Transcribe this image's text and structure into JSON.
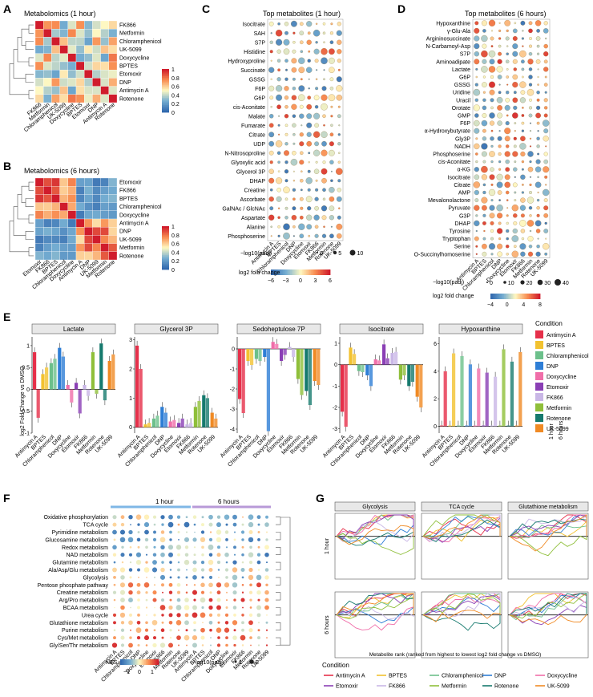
{
  "panels": {
    "A": {
      "letter": "A",
      "title": "Metabolomics (1 hour)",
      "rows": [
        "FK866",
        "Metformin",
        "Chloramphenicol",
        "UK-5099",
        "Doxycycline",
        "BPTES",
        "Etomoxir",
        "DNP",
        "Antimycin A",
        "Rotenone"
      ],
      "cols": [
        "FK866",
        "Metformin",
        "Chloramphenicol",
        "UK-5099",
        "Doxycycline",
        "BPTES",
        "Etomoxir",
        "DNP",
        "Antimycin A",
        "Rotenone"
      ],
      "scale": [
        "1",
        "0.8",
        "0.6",
        "0.4",
        "0.2",
        "0"
      ]
    },
    "B": {
      "letter": "B",
      "title": "Metabolomics (6 hours)",
      "rows": [
        "Etomoxir",
        "FK866",
        "BPTES",
        "Chloramphenicol",
        "Doxycycline",
        "Antimycin A",
        "DNP",
        "UK-5099",
        "Metformin",
        "Rotenone"
      ],
      "cols": [
        "Etomoxir",
        "FK866",
        "BPTES",
        "Chloramphenicol",
        "Doxycycline",
        "Antimycin A",
        "DNP",
        "UK-5099",
        "Metformin",
        "Rotenone"
      ],
      "scale": [
        "1",
        "0.8",
        "0.6",
        "0.4",
        "0.2",
        "0"
      ]
    },
    "C": {
      "letter": "C",
      "title": "Top metabolites (1 hour)",
      "rows": [
        "Isocitrate",
        "SAH",
        "S7P",
        "Histidine",
        "Hydroxyproline",
        "Succinate",
        "GSSG",
        "F6P",
        "G6P",
        "cis-Aconitate",
        "Malate",
        "Fumarate",
        "Citrate",
        "UDP",
        "N-Nitrosoproline",
        "Glyoxylic acid",
        "Glycerol 3P",
        "DHAP",
        "Creatine",
        "Ascorbate",
        "GalNAc / GlcNAc",
        "Aspartate",
        "Alanine",
        "Phosphoserine"
      ],
      "cols": [
        "Antimycin A",
        "BPTES",
        "Chloramphenicol",
        "DNP",
        "Doxycycline",
        "Etomoxir",
        "FK866",
        "Metformin",
        "Rotenone",
        "UK-5099"
      ],
      "size_title": "−log10(padj)",
      "size_ticks": [
        "0",
        "5",
        "10"
      ],
      "color_title": "log2 fold change",
      "color_ticks": [
        "−6",
        "−3",
        "0",
        "3",
        "6"
      ]
    },
    "D": {
      "letter": "D",
      "title": "Top metabolites (6 hours)",
      "rows": [
        "Hypoxanthine",
        "γ-Glu-Ala",
        "Argininosuccinate",
        "N-Carbamoyl-Asp",
        "S7P",
        "Aminoadipate",
        "Lactate",
        "G6P",
        "GSSG",
        "Uridine",
        "Uracil",
        "Orotate",
        "GMP",
        "F6P",
        "α-Hydroxybutyrate",
        "Gly3P",
        "NADH",
        "Phosphoserine",
        "cis-Aconitate",
        "α-KG",
        "Isocitrate",
        "Citrate",
        "AMP",
        "Mevalonolactone",
        "Pyruvate",
        "G3P",
        "DHAP",
        "Tyrosine",
        "Tryptophan",
        "Serine",
        "O-Succinylhomoserine"
      ],
      "cols": [
        "Antimycin A",
        "BPTES",
        "Chloramphenicol",
        "DNP",
        "Doxycycline",
        "Etomoxir",
        "FK866",
        "Metformin",
        "Rotenone",
        "UK-5099"
      ],
      "size_title": "−log10(padj)",
      "size_ticks": [
        "0",
        "10",
        "20",
        "30",
        "40"
      ],
      "color_title": "log2 fold change",
      "color_ticks": [
        "−4",
        "0",
        "4",
        "8"
      ]
    },
    "E": {
      "letter": "E",
      "ylabel": "log2 Fold Change vs DMSO",
      "legend_title": "Condition",
      "timepoints": [
        "1 hour",
        "6 hours"
      ]
    },
    "F": {
      "letter": "F",
      "header_1h": "1 hour",
      "header_6h": "6 hours",
      "rows": [
        "Oxidative phosphorylation",
        "TCA cycle",
        "Pyrimidine metabolism",
        "Glucosamine metabolism",
        "Redox metabolism",
        "NAD metabolism",
        "Glutamine metabolism",
        "Ala/Asp/Glu metabolism",
        "Glycolysis",
        "Pentose phosphate pathway",
        "Creatine metabolism",
        "Arg/Pro metabolism",
        "BCAA metabolism",
        "Urea cycle",
        "Glutathione metabolism",
        "Purine metabolism",
        "Cys/Met metabolism",
        "Gly/Ser/Thr metabolism"
      ],
      "cols": [
        "Antimycin A",
        "BPTES",
        "Chloramphenicol",
        "DNP",
        "Doxycycline",
        "Etomoxir",
        "FK866",
        "Metformin",
        "Rotenone",
        "UK-5099",
        "Antimycin A",
        "BPTES",
        "Chloramphenicol",
        "DNP",
        "Doxycycline",
        "Etomoxir",
        "FK866",
        "Metformin",
        "Rotenone",
        "UK-5099"
      ],
      "nes_title": "NES",
      "nes_ticks": [
        "−1",
        "0",
        "1"
      ],
      "size_title": "−log10(padj)",
      "size_ticks": [
        "1",
        "2"
      ]
    },
    "G": {
      "letter": "G",
      "rows": [
        "1 hour",
        "6 hours"
      ],
      "xlabel": "Metabolite rank (ranked from highest to lowest log2 fold change vs DMSO)",
      "legend_title": "Condition"
    }
  },
  "conditions": [
    {
      "name": "Antimycin A",
      "color": "#e6304a"
    },
    {
      "name": "BPTES",
      "color": "#f2c230"
    },
    {
      "name": "Chloramphenicol",
      "color": "#6cc08b"
    },
    {
      "name": "DNP",
      "color": "#2e7ed6"
    },
    {
      "name": "Doxycycline",
      "color": "#f06ea9"
    },
    {
      "name": "Etomoxir",
      "color": "#8a3fb5"
    },
    {
      "name": "FK866",
      "color": "#c9b7e6"
    },
    {
      "name": "Metformin",
      "color": "#8fbf3a"
    },
    {
      "name": "Rotenone",
      "color": "#167a6e"
    },
    {
      "name": "UK-5099",
      "color": "#f08a24"
    }
  ],
  "chart_data": [
    {
      "type": "bar",
      "title": "Lactate",
      "categories": [
        "Antimycin A",
        "BPTES",
        "Chloramphenicol",
        "DNP",
        "Doxycycline",
        "Etomoxir",
        "FK866",
        "Metformin",
        "Rotenone",
        "UK-5099"
      ],
      "series": [
        {
          "name": "1 hour",
          "values": [
            0.85,
            0.35,
            0.6,
            0.95,
            0.1,
            0.15,
            0.1,
            0.85,
            1.05,
            0.65
          ]
        },
        {
          "name": "6 hours",
          "values": [
            -0.65,
            0.5,
            0.7,
            0.75,
            -0.3,
            -0.55,
            -0.15,
            -0.1,
            -0.25,
            0.8
          ]
        }
      ],
      "ylim": [
        -1,
        1.2
      ],
      "yticks": [
        -1.0,
        -0.5,
        0.0,
        0.5,
        1.0
      ]
    },
    {
      "type": "bar",
      "title": "Glycerol 3P",
      "categories": [
        "Antimycin A",
        "BPTES",
        "Chloramphenicol",
        "DNP",
        "Doxycycline",
        "Etomoxir",
        "FK866",
        "Metformin",
        "Rotenone",
        "UK-5099"
      ],
      "series": [
        {
          "name": "1 hour",
          "values": [
            2.8,
            0.1,
            0.3,
            0.7,
            0.2,
            0.15,
            0.1,
            0.7,
            1.1,
            0.5
          ]
        },
        {
          "name": "6 hours",
          "values": [
            2.0,
            0.15,
            0.4,
            0.5,
            0.25,
            0.3,
            0.15,
            0.9,
            1.0,
            0.3
          ]
        }
      ],
      "ylim": [
        -0.2,
        3.1
      ],
      "yticks": [
        0,
        1,
        2,
        3
      ]
    },
    {
      "type": "bar",
      "title": "Sedoheptulose 7P",
      "categories": [
        "Antimycin A",
        "BPTES",
        "Chloramphenicol",
        "DNP",
        "Doxycycline",
        "Etomoxir",
        "FK866",
        "Metformin",
        "Rotenone",
        "UK-5099"
      ],
      "series": [
        {
          "name": "1 hour",
          "values": [
            -2.5,
            -0.6,
            -0.5,
            -0.4,
            0.35,
            -0.6,
            0.1,
            -1.5,
            -2.1,
            -1.6
          ]
        },
        {
          "name": "6 hours",
          "values": [
            -3.2,
            -0.8,
            -0.6,
            -4.1,
            0.25,
            -0.3,
            -0.4,
            -2.3,
            -2.8,
            -1.8
          ]
        }
      ],
      "ylim": [
        -4.2,
        0.6
      ],
      "yticks": [
        -4,
        -3,
        -2,
        -1,
        0
      ]
    },
    {
      "type": "bar",
      "title": "Isocitrate",
      "categories": [
        "Antimycin A",
        "BPTES",
        "Chloramphenicol",
        "DNP",
        "Doxycycline",
        "Etomoxir",
        "FK866",
        "Metformin",
        "Rotenone",
        "UK-5099"
      ],
      "series": [
        {
          "name": "1 hour",
          "values": [
            -2.2,
            0.8,
            -0.3,
            -0.5,
            0.25,
            0.95,
            0.55,
            -0.7,
            -1.0,
            -1.5
          ]
        },
        {
          "name": "6 hours",
          "values": [
            -2.9,
            0.5,
            -0.35,
            -1.0,
            0.2,
            0.3,
            0.6,
            -0.5,
            -0.8,
            -2.0
          ]
        }
      ],
      "ylim": [
        -3.2,
        1.3
      ],
      "yticks": [
        -3,
        -2,
        -1,
        0,
        1
      ]
    },
    {
      "type": "bar",
      "title": "Hypoxanthine",
      "categories": [
        "Antimycin A",
        "BPTES",
        "Chloramphenicol",
        "DNP",
        "Doxycycline",
        "Etomoxir",
        "FK866",
        "Metformin",
        "Rotenone",
        "UK-5099"
      ],
      "series": [
        {
          "name": "1 hour",
          "values": [
            0.05,
            0.05,
            0.05,
            0.05,
            0.05,
            0.05,
            0.05,
            0.05,
            0.05,
            0.05
          ]
        },
        {
          "name": "6 hours",
          "values": [
            4.0,
            5.3,
            5.1,
            4.5,
            4.2,
            3.9,
            3.6,
            5.6,
            4.7,
            5.4
          ]
        }
      ],
      "ylim": [
        -0.5,
        6.5
      ],
      "yticks": [
        0,
        2,
        4,
        6
      ]
    }
  ]
}
